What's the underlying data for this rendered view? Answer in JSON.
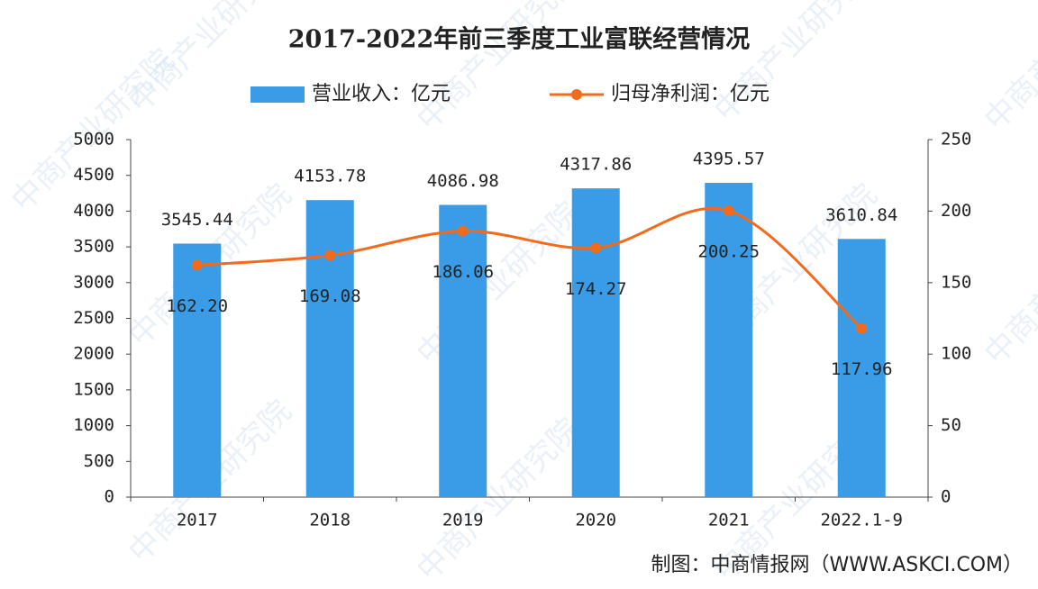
{
  "chart_data": {
    "type": "bar",
    "title": "2017-2022年前三季度工业富联经营情况",
    "categories": [
      "2017",
      "2018",
      "2019",
      "2020",
      "2021",
      "2022.1-9"
    ],
    "series": [
      {
        "name": "营业收入：亿元",
        "color": "#3a9be6",
        "values": [
          3545.44,
          4153.78,
          4086.98,
          4317.86,
          4395.57,
          3610.84
        ]
      },
      {
        "name": "归母净利润：亿元",
        "color": "#f26b1d",
        "type": "line",
        "axis": "y2",
        "values": [
          162.2,
          169.08,
          186.06,
          174.27,
          200.25,
          117.96
        ],
        "value_labels": [
          "162.20",
          "169.08",
          "186.06",
          "174.27",
          "200.25",
          "117.96"
        ]
      }
    ],
    "ylim": [
      0,
      5000
    ],
    "yticks": [
      0,
      500,
      1000,
      1500,
      2000,
      2500,
      3000,
      3500,
      4000,
      4500,
      5000
    ],
    "y2lim": [
      0,
      250
    ],
    "y2ticks": [
      0,
      50,
      100,
      150,
      200,
      250
    ],
    "grid": false,
    "source": "制图：中商情报网（WWW.ASKCI.COM）",
    "watermark": "中商产业研究院"
  }
}
